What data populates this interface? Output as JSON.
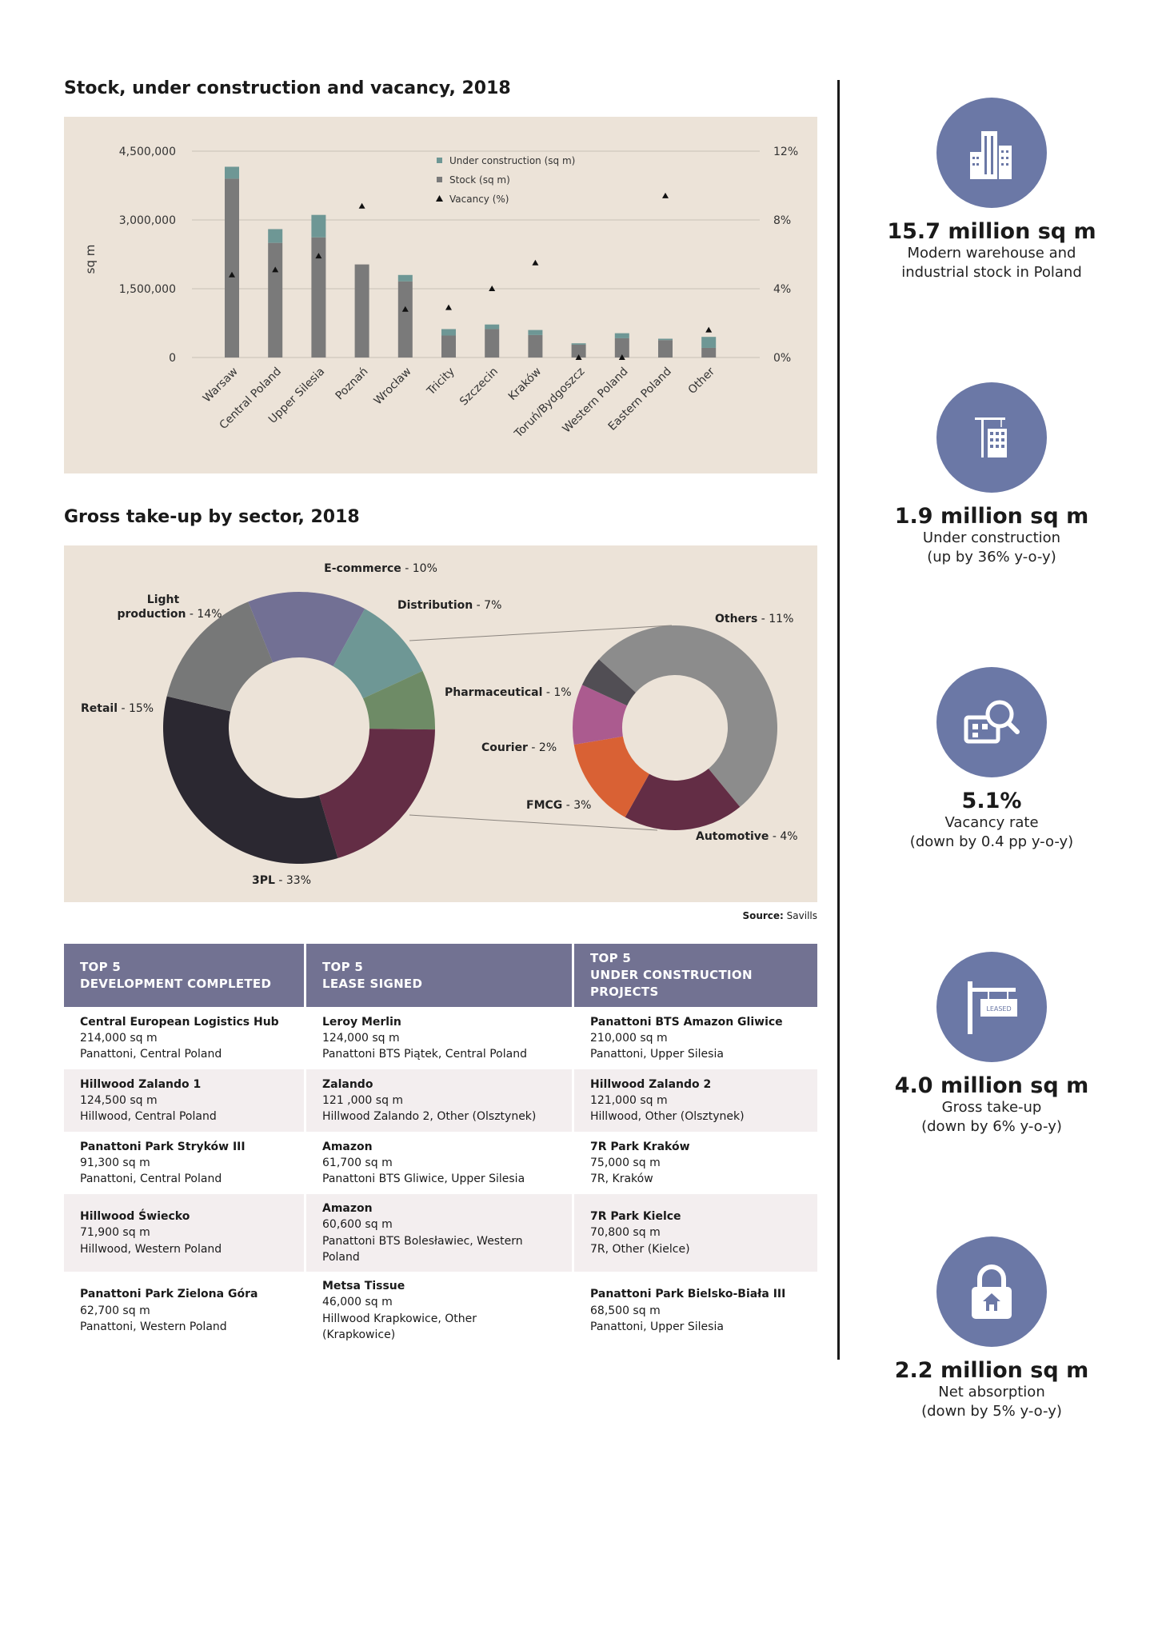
{
  "bar_chart": {
    "title": "Stock, under construction and vacancy, 2018",
    "ylabel": "sq m",
    "left_ticks": [
      "4,500,000",
      "3,000,000",
      "1,500,000",
      "0"
    ],
    "right_ticks": [
      "12%",
      "8%",
      "4%",
      "0%"
    ]
  },
  "donut_chart": {
    "title": "Gross take-up by sector, 2018"
  },
  "chart_data": [
    {
      "type": "bar",
      "title": "Stock, under construction and vacancy, 2018",
      "ylabel": "sq m",
      "ylim": [
        0,
        4500000
      ],
      "y2lim": [
        0,
        12
      ],
      "categories": [
        "Warsaw",
        "Central Poland",
        "Upper Silesia",
        "Poznań",
        "Wrocław",
        "Tricity",
        "Szczecin",
        "Kraków",
        "Toruń/Bydgoszcz",
        "Western Poland",
        "Eastern Poland",
        "Other"
      ],
      "series": [
        {
          "name": "Stock (sq m)",
          "kind": "bar",
          "color": "#7a7a7a",
          "values": [
            3900000,
            2500000,
            2620000,
            2030000,
            1660000,
            480000,
            620000,
            490000,
            280000,
            420000,
            380000,
            210000
          ]
        },
        {
          "name": "Under construction (sq m)",
          "kind": "bar",
          "color": "#6e9795",
          "values": [
            260000,
            300000,
            490000,
            0,
            140000,
            140000,
            100000,
            110000,
            30000,
            110000,
            30000,
            240000
          ]
        },
        {
          "name": "Vacancy (%)",
          "kind": "marker",
          "axis": "right",
          "values": [
            4.8,
            5.1,
            5.9,
            8.8,
            2.8,
            2.9,
            4.0,
            5.5,
            0.0,
            0.0,
            9.4,
            1.6
          ]
        }
      ],
      "legend_position": "top-center",
      "grid": true
    },
    {
      "type": "pie",
      "title": "Gross take-up by sector, 2018",
      "main": [
        {
          "label": "Light production",
          "value": 14,
          "text": "14%",
          "color": "#727094"
        },
        {
          "label": "E-commerce",
          "value": 10,
          "text": "10%",
          "color": "#6e9795"
        },
        {
          "label": "Distribution",
          "value": 7,
          "text": "7%",
          "color": "#6e8b66"
        },
        {
          "label": "Other sectors (detail)",
          "value": 20,
          "color": "#632d45"
        },
        {
          "label": "3PL",
          "value": 33,
          "text": "33%",
          "color": "#2b2831"
        },
        {
          "label": "Retail",
          "value": 15,
          "text": "15%",
          "color": "#777878"
        }
      ],
      "detail": [
        {
          "label": "Others",
          "value": 11,
          "text": "11%",
          "color": "#8c8c8c"
        },
        {
          "label": "Automotive",
          "value": 4,
          "text": "4%",
          "color": "#632d45"
        },
        {
          "label": "FMCG",
          "value": 3,
          "text": "3%",
          "color": "#d96134"
        },
        {
          "label": "Courier",
          "value": 2,
          "text": "2%",
          "color": "#ab5b8f"
        },
        {
          "label": "Pharmaceutical",
          "value": 1,
          "text": "1%",
          "color": "#514e54"
        }
      ]
    }
  ],
  "source": {
    "label": "Source:",
    "value": "Savills"
  },
  "table": {
    "headers": [
      [
        "TOP 5",
        "DEVELOPMENT COMPLETED"
      ],
      [
        "TOP 5",
        "LEASE SIGNED"
      ],
      [
        "TOP 5",
        "UNDER CONSTRUCTION",
        "PROJECTS"
      ]
    ],
    "rows": [
      [
        {
          "name": "Central European Logistics Hub",
          "lines": [
            "214,000 sq m",
            "Panattoni, Central Poland"
          ]
        },
        {
          "name": "Leroy Merlin",
          "lines": [
            "124,000 sq m",
            "Panattoni BTS Piątek, Central Poland"
          ]
        },
        {
          "name": "Panattoni BTS Amazon Gliwice",
          "lines": [
            "210,000 sq m",
            "Panattoni, Upper Silesia"
          ]
        }
      ],
      [
        {
          "name": "Hillwood Zalando 1",
          "lines": [
            "124,500 sq m",
            "Hillwood, Central Poland"
          ]
        },
        {
          "name": "Zalando",
          "lines": [
            "121 ,000 sq m",
            "Hillwood Zalando 2, Other (Olsztynek)"
          ]
        },
        {
          "name": "Hillwood Zalando 2",
          "lines": [
            "121,000 sq m",
            "Hillwood, Other (Olsztynek)"
          ]
        }
      ],
      [
        {
          "name": "Panattoni Park Stryków III",
          "lines": [
            "91,300 sq m",
            "Panattoni, Central Poland"
          ]
        },
        {
          "name": "Amazon",
          "lines": [
            "61,700 sq m",
            "Panattoni BTS Gliwice, Upper Silesia"
          ]
        },
        {
          "name": "7R Park Kraków",
          "lines": [
            "75,000 sq m",
            "7R, Kraków"
          ]
        }
      ],
      [
        {
          "name": "Hillwood Świecko",
          "lines": [
            "71,900 sq m",
            "Hillwood, Western Poland"
          ]
        },
        {
          "name": "Amazon",
          "lines": [
            "60,600 sq m",
            "Panattoni BTS Bolesławiec, Western",
            "Poland"
          ]
        },
        {
          "name": "7R Park Kielce",
          "lines": [
            "70,800 sq m",
            "7R, Other (Kielce)"
          ]
        }
      ],
      [
        {
          "name": "Panattoni Park Zielona Góra",
          "lines": [
            "62,700 sq m",
            "Panattoni, Western Poland"
          ]
        },
        {
          "name": "Metsa Tissue",
          "lines": [
            "46,000 sq m",
            "Hillwood Krapkowice, Other",
            "(Krapkowice)"
          ]
        },
        {
          "name": "Panattoni Park Bielsko-Biała III",
          "lines": [
            "68,500 sq m",
            "Panattoni, Upper Silesia"
          ]
        }
      ]
    ]
  },
  "kpis": [
    {
      "icon": "skyscraper-icon",
      "value": "15.7 million sq m",
      "desc1": "Modern warehouse and",
      "desc2": "industrial stock in Poland"
    },
    {
      "icon": "crane-building-icon",
      "value": "1.9 million sq m",
      "desc1": "Under construction",
      "desc2": "(up by 36% y-o-y)"
    },
    {
      "icon": "building-search-icon",
      "value": "5.1%",
      "desc1": "Vacancy rate",
      "desc2": "(down by 0.4 pp y-o-y)"
    },
    {
      "icon": "leased-sign-icon",
      "value": "4.0 million sq m",
      "desc1": "Gross take-up",
      "desc2": "(down by 6% y-o-y)",
      "sign_text": "LEASED"
    },
    {
      "icon": "padlock-house-icon",
      "value": "2.2 million sq m",
      "desc1": "Net absorption",
      "desc2": "(down by 5% y-o-y)"
    }
  ]
}
